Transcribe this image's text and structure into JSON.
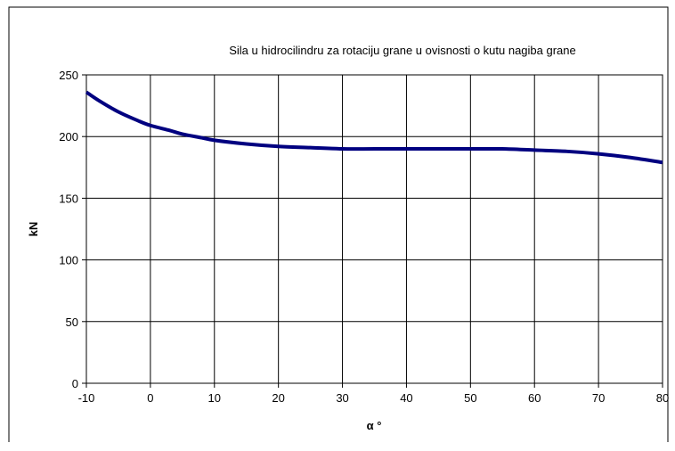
{
  "chart_data": {
    "type": "line",
    "title": "Sila u hidrocilindru za rotaciju grane u ovisnosti o kutu nagiba grane",
    "xlabel": "α °",
    "ylabel": "kN",
    "xlim": [
      -10,
      80
    ],
    "ylim": [
      0,
      250
    ],
    "x_ticks": [
      "-10",
      "0",
      "10",
      "20",
      "30",
      "40",
      "50",
      "60",
      "70",
      "80"
    ],
    "y_ticks": [
      "0",
      "50",
      "100",
      "150",
      "200",
      "250"
    ],
    "grid": true,
    "legend": "none",
    "series": [
      {
        "color": "#000080",
        "x": [
          -10,
          -8,
          -5,
          -2,
          0,
          3,
          5,
          8,
          10,
          15,
          20,
          25,
          30,
          35,
          40,
          45,
          50,
          55,
          60,
          65,
          70,
          75,
          80
        ],
        "y": [
          236,
          229,
          220,
          213,
          209,
          205,
          202,
          199,
          197,
          194,
          192,
          191,
          190,
          190,
          190,
          190,
          190,
          190,
          189,
          188,
          186,
          183,
          179
        ]
      }
    ]
  }
}
